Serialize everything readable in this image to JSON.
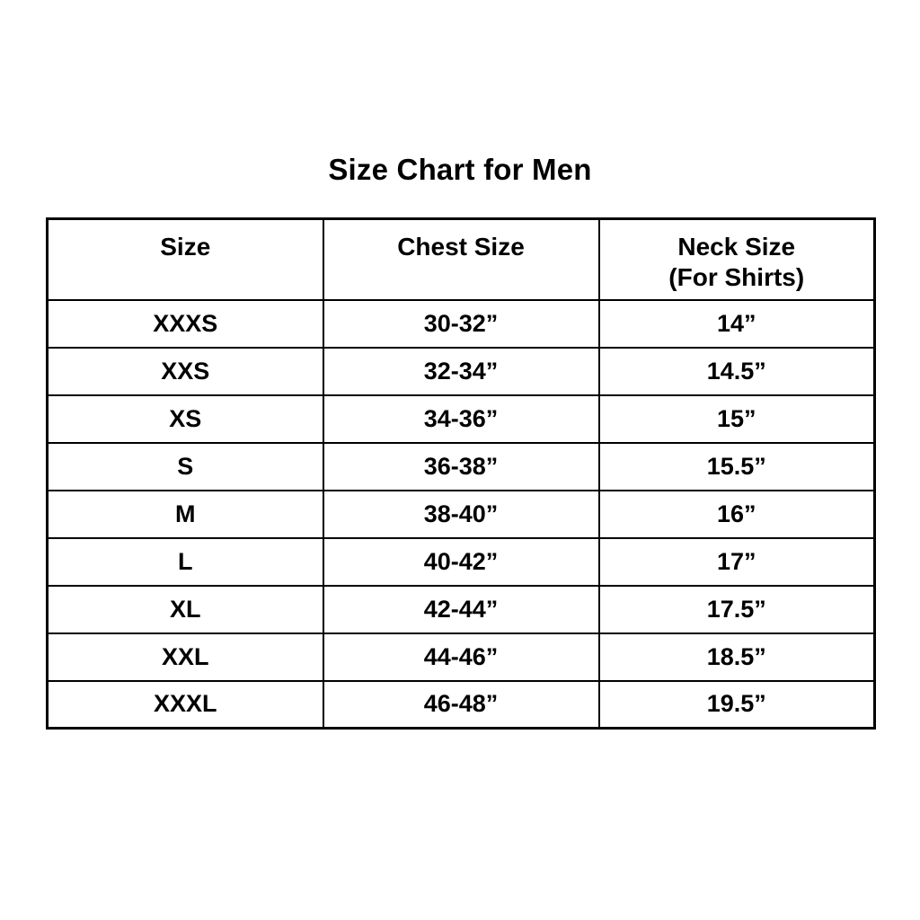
{
  "title": "Size Chart for Men",
  "chart_data": {
    "type": "table",
    "title": "Size Chart for Men",
    "columns": [
      "Size",
      "Chest Size",
      "Neck Size (For Shirts)"
    ],
    "rows": [
      [
        "XXXS",
        "30-32”",
        "14”"
      ],
      [
        "XXS",
        "32-34”",
        "14.5”"
      ],
      [
        "XS",
        "34-36”",
        "15”"
      ],
      [
        "S",
        "36-38”",
        "15.5”"
      ],
      [
        "M",
        "38-40”",
        "16”"
      ],
      [
        "L",
        "40-42”",
        "17”"
      ],
      [
        "XL",
        "42-44”",
        "17.5”"
      ],
      [
        "XXL",
        "44-46”",
        "18.5”"
      ],
      [
        "XXXL",
        "46-48”",
        "19.5”"
      ]
    ]
  },
  "table": {
    "headers": [
      {
        "label": "Size",
        "sublabel": ""
      },
      {
        "label": "Chest Size",
        "sublabel": ""
      },
      {
        "label": "Neck Size",
        "sublabel": "(For Shirts)"
      }
    ],
    "rows": [
      {
        "size": "XXXS",
        "chest": "30-32”",
        "neck": "14”"
      },
      {
        "size": "XXS",
        "chest": "32-34”",
        "neck": "14.5”"
      },
      {
        "size": "XS",
        "chest": "34-36”",
        "neck": "15”"
      },
      {
        "size": "S",
        "chest": "36-38”",
        "neck": "15.5”"
      },
      {
        "size": "M",
        "chest": "38-40”",
        "neck": "16”"
      },
      {
        "size": "L",
        "chest": "40-42”",
        "neck": "17”"
      },
      {
        "size": "XL",
        "chest": "42-44”",
        "neck": "17.5”"
      },
      {
        "size": "XXL",
        "chest": "44-46”",
        "neck": "18.5”"
      },
      {
        "size": "XXXL",
        "chest": "46-48”",
        "neck": "19.5”"
      }
    ]
  },
  "colors": {
    "background": "#ffffff",
    "text": "#000000",
    "border": "#000000"
  }
}
